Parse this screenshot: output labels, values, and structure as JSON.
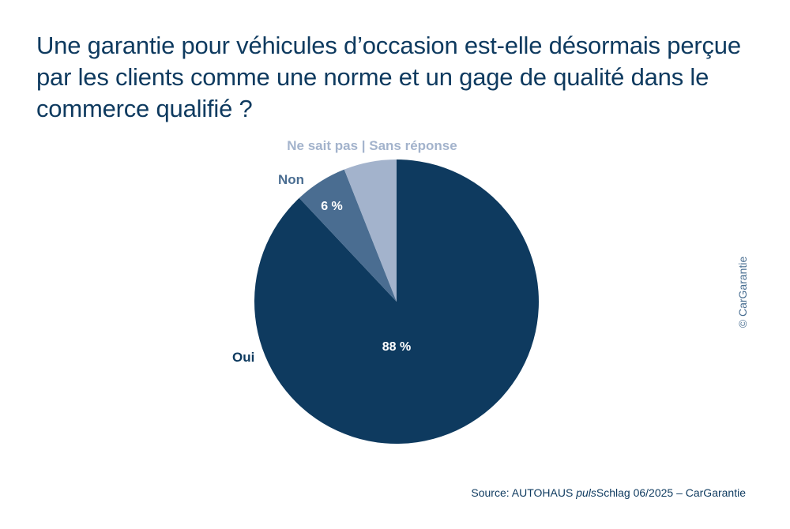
{
  "title": "Une garantie pour véhicules d’occasion est-elle désormais perçue par les clients comme une norme et un gage de qualité dans le commerce qualifié ?",
  "copyright": "© CarGarantie",
  "source": {
    "prefix": "Source: AUTOHAUS ",
    "italic": "puls",
    "suffix": "Schlag 06/2025 – CarGarantie"
  },
  "colors": {
    "oui": "#0e3a5f",
    "non": "#4a6d91",
    "ne_sait_pas": "#a3b3cc",
    "title": "#0e3a5f"
  },
  "chart_data": {
    "type": "pie",
    "title": "Une garantie pour véhicules d’occasion est-elle désormais perçue par les clients comme une norme et un gage de qualité dans le commerce qualifié ?",
    "slices": [
      {
        "label": "Oui",
        "value": 88,
        "value_label": "88 %",
        "color": "#0e3a5f"
      },
      {
        "label": "Non",
        "value": 6,
        "value_label": "6 %",
        "color": "#4a6d91"
      },
      {
        "label": "Ne sait pas | Sans réponse",
        "value": 6,
        "value_label": "",
        "color": "#a3b3cc"
      }
    ],
    "order": "clockwise from top"
  }
}
